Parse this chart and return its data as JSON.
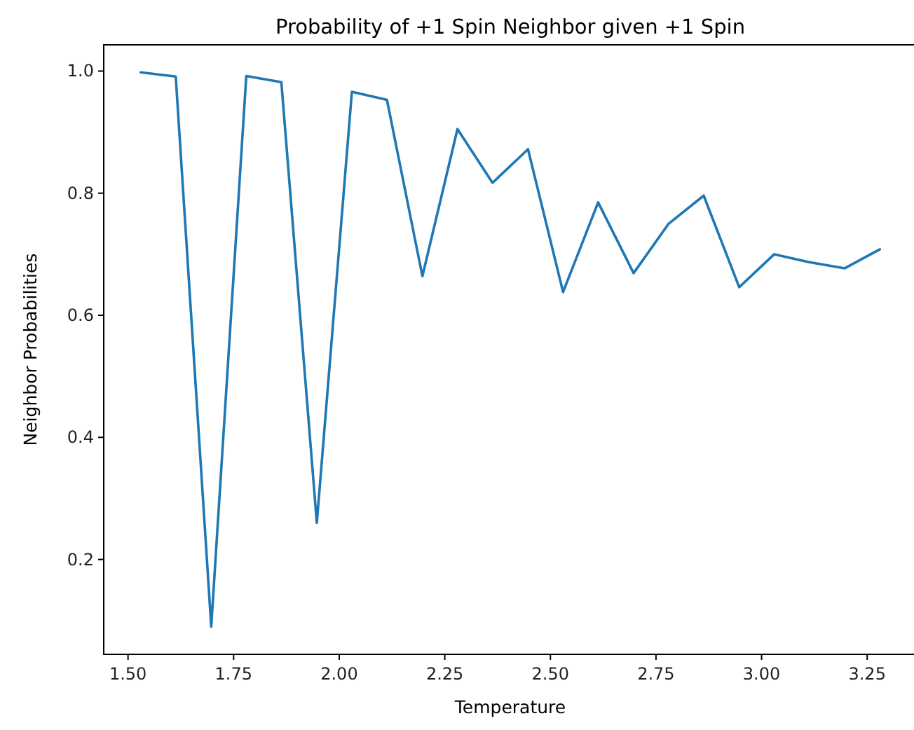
{
  "chart_data": {
    "type": "line",
    "title": "Probability of +1 Spin Neighbor given +1 Spin",
    "xlabel": "Temperature",
    "ylabel": "Neighbor Probabilities",
    "x": [
      1.53,
      1.613,
      1.697,
      1.78,
      1.863,
      1.947,
      2.03,
      2.113,
      2.197,
      2.28,
      2.363,
      2.447,
      2.53,
      2.613,
      2.697,
      2.78,
      2.863,
      2.947,
      3.03,
      3.113,
      3.197,
      3.28
    ],
    "series": [
      {
        "color": "#1f77b4",
        "values": [
          0.998,
          0.991,
          0.09,
          0.992,
          0.982,
          0.26,
          0.966,
          0.953,
          0.664,
          0.905,
          0.817,
          0.872,
          0.638,
          0.785,
          0.669,
          0.75,
          0.796,
          0.646,
          0.7,
          0.687,
          0.677,
          0.708
        ]
      }
    ],
    "xlim": [
      1.4425,
      3.3675
    ],
    "ylim": [
      0.0446,
      1.043
    ],
    "xticks": [
      {
        "value": 1.5,
        "label": "1.50"
      },
      {
        "value": 1.75,
        "label": "1.75"
      },
      {
        "value": 2,
        "label": "2.00"
      },
      {
        "value": 2.25,
        "label": "2.25"
      },
      {
        "value": 2.5,
        "label": "2.50"
      },
      {
        "value": 2.75,
        "label": "2.75"
      },
      {
        "value": 3,
        "label": "3.00"
      },
      {
        "value": 3.25,
        "label": "3.25"
      }
    ],
    "yticks": [
      0.2,
      0.4,
      0.6,
      0.8,
      {
        "value": 1,
        "label": "1.0"
      }
    ],
    "grid": false,
    "marker": "none",
    "line_style": "solid"
  }
}
